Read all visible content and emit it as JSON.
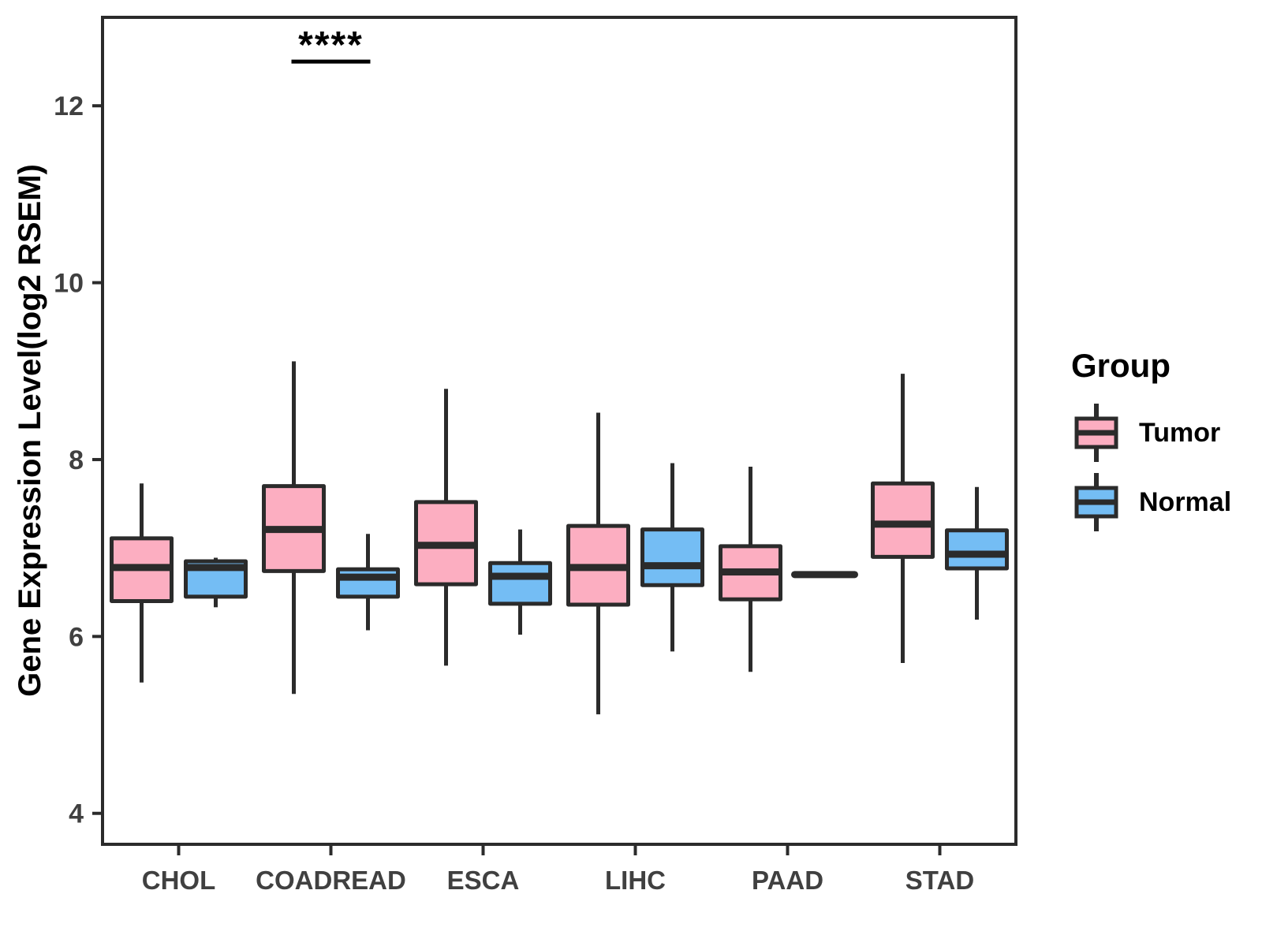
{
  "chart_data": {
    "type": "boxplot",
    "title": "",
    "xlabel": "",
    "ylabel": "Gene Expression Level(log2 RSEM)",
    "ylim": [
      3.65,
      13.0
    ],
    "yticks": [
      4,
      6,
      8,
      10,
      12
    ],
    "grid": false,
    "categories": [
      "CHOL",
      "COADREAD",
      "ESCA",
      "LIHC",
      "PAAD",
      "STAD"
    ],
    "legend": {
      "title": "Group",
      "position": "right"
    },
    "colors": {
      "tumor_fill": "#FCAEC1",
      "normal_fill": "#74BDF4",
      "box_stroke": "#2B2B2B",
      "axis_text": "#404040",
      "title_text": "#000000"
    },
    "series": [
      {
        "name": "Tumor",
        "color": "#FCAEC1",
        "boxes": [
          {
            "category": "CHOL",
            "min": 5.48,
            "q1": 6.4,
            "median": 6.78,
            "q3": 7.11,
            "max": 7.73
          },
          {
            "category": "COADREAD",
            "min": 5.35,
            "q1": 6.74,
            "median": 7.21,
            "q3": 7.7,
            "max": 9.11
          },
          {
            "category": "ESCA",
            "min": 5.67,
            "q1": 6.59,
            "median": 7.03,
            "q3": 7.52,
            "max": 8.8
          },
          {
            "category": "LIHC",
            "min": 5.12,
            "q1": 6.36,
            "median": 6.78,
            "q3": 7.25,
            "max": 8.53
          },
          {
            "category": "PAAD",
            "min": 5.6,
            "q1": 6.42,
            "median": 6.73,
            "q3": 7.02,
            "max": 7.92
          },
          {
            "category": "STAD",
            "min": 5.7,
            "q1": 6.9,
            "median": 7.27,
            "q3": 7.73,
            "max": 8.97
          }
        ]
      },
      {
        "name": "Normal",
        "color": "#74BDF4",
        "boxes": [
          {
            "category": "CHOL",
            "min": 6.33,
            "q1": 6.45,
            "median": 6.78,
            "q3": 6.85,
            "max": 6.89
          },
          {
            "category": "COADREAD",
            "min": 6.07,
            "q1": 6.45,
            "median": 6.67,
            "q3": 6.76,
            "max": 7.16
          },
          {
            "category": "ESCA",
            "min": 6.02,
            "q1": 6.37,
            "median": 6.68,
            "q3": 6.83,
            "max": 7.21
          },
          {
            "category": "LIHC",
            "min": 5.83,
            "q1": 6.58,
            "median": 6.8,
            "q3": 7.21,
            "max": 7.96
          },
          {
            "category": "PAAD",
            "min": 6.7,
            "q1": 6.7,
            "median": 6.7,
            "q3": 6.7,
            "max": 6.7
          },
          {
            "category": "STAD",
            "min": 6.19,
            "q1": 6.77,
            "median": 6.93,
            "q3": 7.2,
            "max": 7.69
          }
        ]
      }
    ],
    "annotation": {
      "text": "****",
      "category": "COADREAD",
      "bar_y": 12.5
    }
  }
}
